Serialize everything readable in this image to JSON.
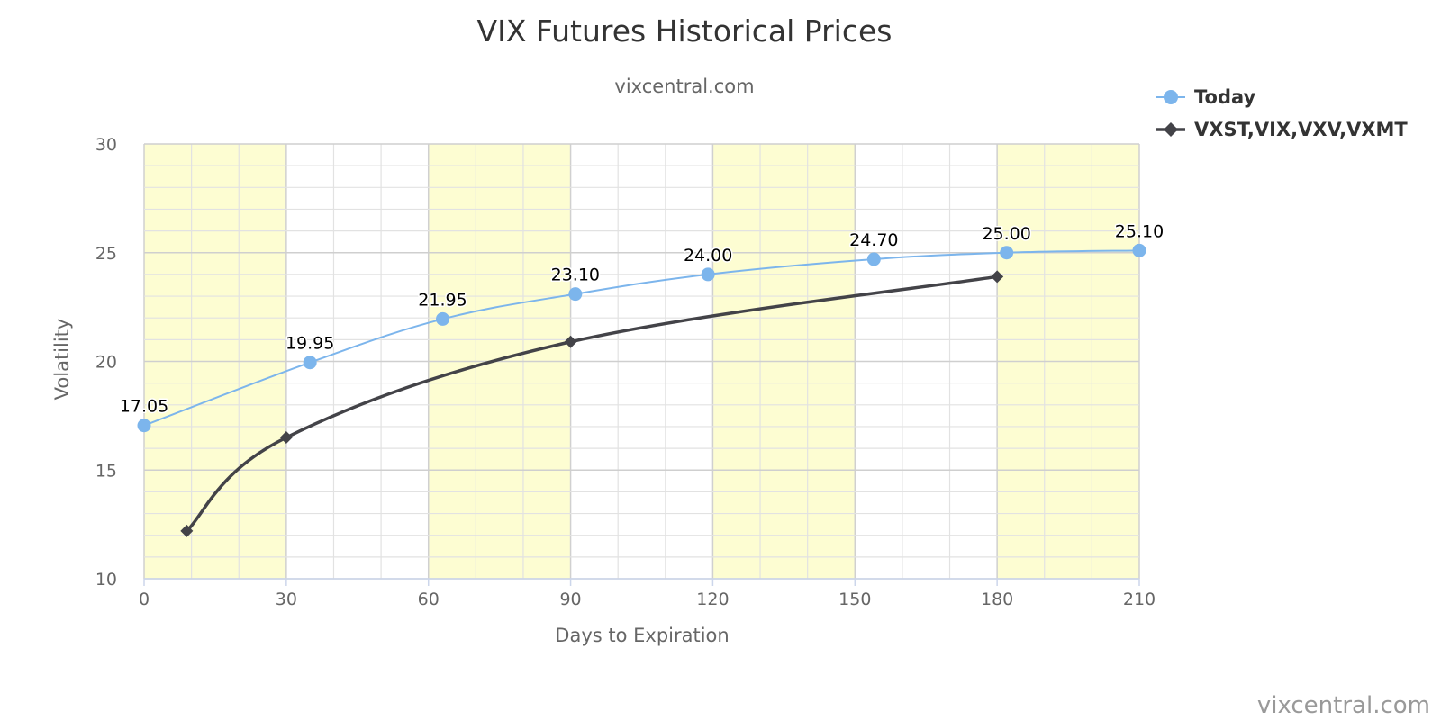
{
  "chart_data": {
    "type": "line",
    "title": "VIX Futures Historical Prices",
    "subtitle": "vixcentral.com",
    "xlabel": "Days to Expiration",
    "ylabel": "Volatility",
    "xlim": [
      0,
      210
    ],
    "ylim": [
      10,
      30
    ],
    "x_ticks": [
      0,
      30,
      60,
      90,
      120,
      150,
      180,
      210
    ],
    "y_ticks": [
      10,
      15,
      20,
      25,
      30
    ],
    "grid": true,
    "legend_position": "top-right",
    "shaded_bands": [
      [
        0,
        30
      ],
      [
        60,
        90
      ],
      [
        120,
        150
      ],
      [
        180,
        210
      ]
    ],
    "series": [
      {
        "name": "Today",
        "color": "#7cb5ec",
        "marker": "circle",
        "show_labels": true,
        "x": [
          0,
          35,
          63,
          91,
          119,
          154,
          182,
          210
        ],
        "y": [
          17.05,
          19.95,
          21.95,
          23.1,
          24.0,
          24.7,
          25.0,
          25.1
        ],
        "labels": [
          "17.05",
          "19.95",
          "21.95",
          "23.10",
          "24.00",
          "24.70",
          "25.00",
          "25.10"
        ]
      },
      {
        "name": "VXST,VIX,VXV,VXMT",
        "color": "#434348",
        "marker": "diamond",
        "show_labels": false,
        "x": [
          9,
          30,
          90,
          180
        ],
        "y": [
          12.2,
          16.5,
          20.9,
          23.9
        ]
      }
    ],
    "credits": "vixcentral.com"
  }
}
